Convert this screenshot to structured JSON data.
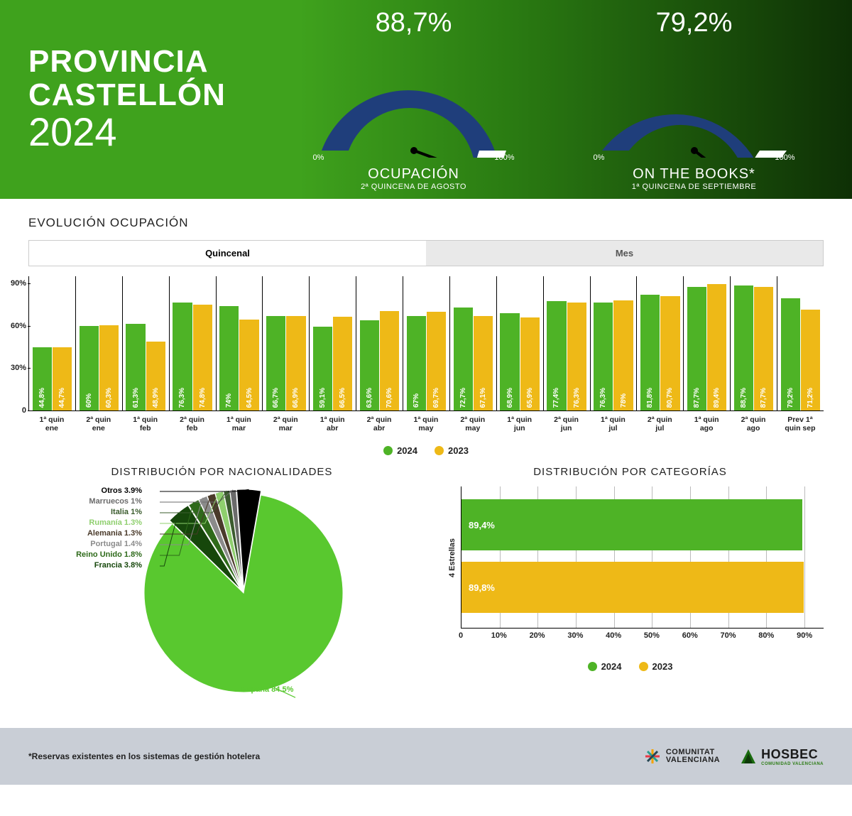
{
  "colors": {
    "header_grad_from": "#3fa21d",
    "header_grad_to": "#0e3005",
    "gauge_fill": "#1f3e7b",
    "gauge_empty": "#ffffff",
    "bar_2024": "#4eb326",
    "bar_2023": "#eeb917",
    "pie_main": "#59c82f",
    "footer_bg": "#c9ced6",
    "text_on_green": "#ffffff"
  },
  "header": {
    "title_line1": "PROVINCIA",
    "title_line2": "CASTELLÓN",
    "title_year": "2024"
  },
  "gauges": [
    {
      "value": 88.7,
      "value_text": "88,7%",
      "label": "OCUPACIÓN",
      "sublabel": "2ª QUINCENA DE AGOSTO",
      "scale_min": "0%",
      "scale_max": "100%"
    },
    {
      "value": 79.2,
      "value_text": "79,2%",
      "label": "ON THE BOOKS*",
      "sublabel": "1ª QUINCENA DE SEPTIEMBRE",
      "scale_min": "0%",
      "scale_max": "100%"
    }
  ],
  "evolution": {
    "title": "EVOLUCIÓN OCUPACIÓN",
    "tabs": [
      "Quincenal",
      "Mes"
    ],
    "active_tab": 0,
    "y_ticks": [
      0,
      30,
      60,
      90
    ],
    "y_max": 95,
    "legend": [
      {
        "label": "2024",
        "color": "#4eb326"
      },
      {
        "label": "2023",
        "color": "#eeb917"
      }
    ],
    "periods": [
      {
        "label_l1": "1ª quin",
        "label_l2": "ene",
        "v2024": 44.8,
        "v2023": 44.7
      },
      {
        "label_l1": "2ª quin",
        "label_l2": "ene",
        "v2024": 60.0,
        "v2023": 60.3
      },
      {
        "label_l1": "1ª quin",
        "label_l2": "feb",
        "v2024": 61.3,
        "v2023": 48.9
      },
      {
        "label_l1": "2ª quin",
        "label_l2": "feb",
        "v2024": 76.3,
        "v2023": 74.8
      },
      {
        "label_l1": "1ª quin",
        "label_l2": "mar",
        "v2024": 74.0,
        "v2023": 64.5
      },
      {
        "label_l1": "2ª quin",
        "label_l2": "mar",
        "v2024": 66.7,
        "v2023": 66.9
      },
      {
        "label_l1": "1ª quin",
        "label_l2": "abr",
        "v2024": 59.1,
        "v2023": 66.5
      },
      {
        "label_l1": "2ª quin",
        "label_l2": "abr",
        "v2024": 63.6,
        "v2023": 70.6
      },
      {
        "label_l1": "1ª quin",
        "label_l2": "may",
        "v2024": 67.0,
        "v2023": 69.7
      },
      {
        "label_l1": "2ª quin",
        "label_l2": "may",
        "v2024": 72.7,
        "v2023": 67.1
      },
      {
        "label_l1": "1ª quin",
        "label_l2": "jun",
        "v2024": 68.9,
        "v2023": 65.9
      },
      {
        "label_l1": "2ª quin",
        "label_l2": "jun",
        "v2024": 77.4,
        "v2023": 76.3
      },
      {
        "label_l1": "1ª quin",
        "label_l2": "jul",
        "v2024": 76.3,
        "v2023": 78.0
      },
      {
        "label_l1": "2ª quin",
        "label_l2": "jul",
        "v2024": 81.8,
        "v2023": 80.7
      },
      {
        "label_l1": "1ª quin",
        "label_l2": "ago",
        "v2024": 87.7,
        "v2023": 89.4
      },
      {
        "label_l1": "2ª quin",
        "label_l2": "ago",
        "v2024": 88.7,
        "v2023": 87.7
      },
      {
        "label_l1": "Prev 1ª",
        "label_l2": "quin sep",
        "v2024": 79.2,
        "v2023": 71.2
      }
    ]
  },
  "nationalities": {
    "title": "DISTRIBUCIÓN POR NACIONALIDADES",
    "slices": [
      {
        "name": "España",
        "value": 84.5,
        "color": "#59c82f",
        "label": "España 84.5%"
      },
      {
        "name": "Francia",
        "value": 3.8,
        "color": "#16470b",
        "label": "Francia 3.8%"
      },
      {
        "name": "Reino Unido",
        "value": 1.8,
        "color": "#2e6a1a",
        "label": "Reino Unido 1.8%"
      },
      {
        "name": "Portugal",
        "value": 1.4,
        "color": "#8b8b8b",
        "label": "Portugal 1.4%"
      },
      {
        "name": "Alemania",
        "value": 1.3,
        "color": "#4a3a2a",
        "label": "Alemania 1.3%"
      },
      {
        "name": "Rumanía",
        "value": 1.3,
        "color": "#8fcf6e",
        "label": "Rumanía 1.3%"
      },
      {
        "name": "Italia",
        "value": 1.0,
        "color": "#3b5c2e",
        "label": "Italia 1%"
      },
      {
        "name": "Marruecos",
        "value": 1.0,
        "color": "#6b6b6b",
        "label": "Marruecos 1%"
      },
      {
        "name": "Otros",
        "value": 3.9,
        "color": "#000000",
        "label": "Otros 3.9%"
      }
    ]
  },
  "categories": {
    "title": "DISTRIBUCIÓN POR CATEGORÍAS",
    "y_label": "4 Estrellas",
    "x_ticks": [
      0,
      10,
      20,
      30,
      40,
      50,
      60,
      70,
      80,
      90
    ],
    "x_max": 95,
    "bars": [
      {
        "year": "2024",
        "value": 89.4,
        "text": "89,4%",
        "color": "#4eb326"
      },
      {
        "year": "2023",
        "value": 89.8,
        "text": "89,8%",
        "color": "#eeb917"
      }
    ],
    "legend": [
      {
        "label": "2024",
        "color": "#4eb326"
      },
      {
        "label": "2023",
        "color": "#eeb917"
      }
    ]
  },
  "footer": {
    "note": "*Reservas existentes en los sistemas de gestión hotelera",
    "logo1_line1": "COMUNITAT",
    "logo1_line2": "VALENCIANA",
    "logo2": "HOSBEC",
    "logo2_sub": "COMUNIDAD VALENCIANA"
  }
}
